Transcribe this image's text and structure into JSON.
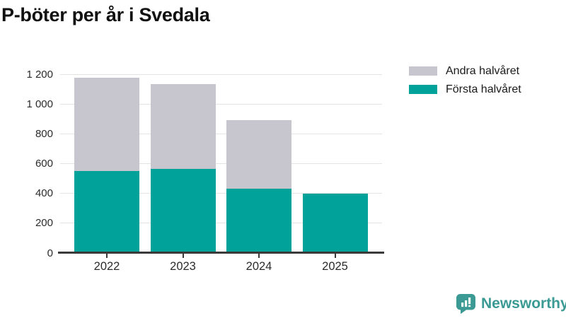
{
  "title": "P-böter per år i Svedala",
  "brand": {
    "name": "Newsworthy",
    "color": "#3b9b94",
    "icon": "newsworthy-speech-bubble-barchart-icon"
  },
  "colors": {
    "teal": "#00a29a",
    "gray": "#c7c5cd",
    "axis": "#3a3a3a",
    "gridline": "#e4e4e4",
    "text": "#2b2b2b"
  },
  "chart_data": {
    "type": "bar",
    "stacked": true,
    "title": "P-böter per år i Svedala",
    "categories": [
      "2022",
      "2023",
      "2024",
      "2025"
    ],
    "series": [
      {
        "name": "Första halvåret",
        "color": "#00a29a",
        "values": [
          550,
          565,
          430,
          400
        ]
      },
      {
        "name": "Andra halvåret",
        "color": "#c7c5cd",
        "values": [
          625,
          570,
          460,
          0
        ]
      }
    ],
    "legend_order": [
      "Andra halvåret",
      "Första halvåret"
    ],
    "legend_position": "top-right",
    "xlabel": "",
    "ylabel": "",
    "ylim": [
      0,
      1200
    ],
    "yticks": [
      0,
      200,
      400,
      600,
      800,
      1000,
      1200
    ],
    "ytick_labels": [
      "0",
      "200",
      "400",
      "600",
      "800",
      "1 000",
      "1 200"
    ],
    "grid": true
  }
}
